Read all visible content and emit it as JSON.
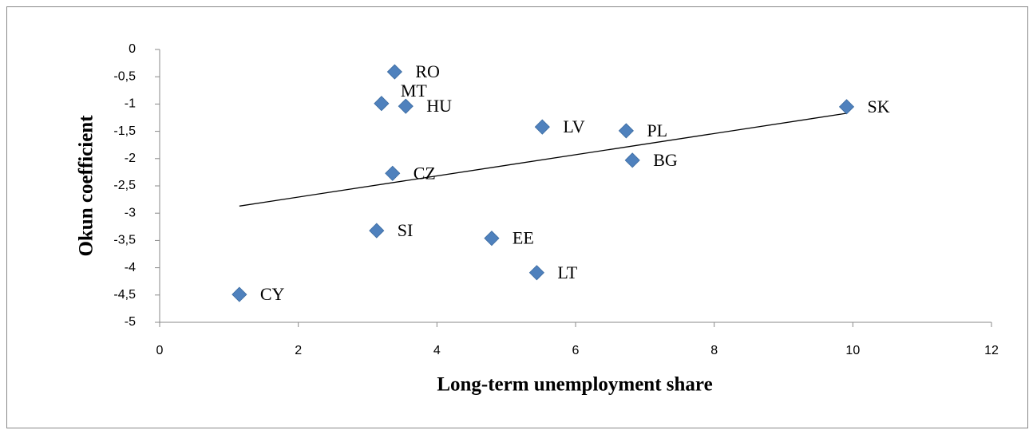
{
  "chart_data": {
    "type": "scatter",
    "xlabel": "Long-term unemployment share",
    "ylabel": "Okun coefficient",
    "labels": [
      "CY",
      "SI",
      "CZ",
      "MT",
      "RO",
      "HU",
      "EE",
      "LT",
      "LV",
      "PL",
      "BG",
      "SK"
    ],
    "x": [
      1.15,
      3.13,
      3.36,
      3.2,
      3.39,
      3.55,
      4.79,
      5.44,
      5.52,
      6.73,
      6.82,
      9.91
    ],
    "y": [
      -4.49,
      -3.32,
      -2.27,
      -0.99,
      -0.41,
      -1.04,
      -3.46,
      -4.09,
      -1.42,
      -1.49,
      -2.03,
      -1.05
    ],
    "color": "#4f81bd",
    "trendline": {
      "x": [
        1.15,
        9.91
      ],
      "y": [
        -2.87,
        -1.17
      ]
    },
    "xlim": [
      0,
      12
    ],
    "xticks": [
      0,
      2,
      4,
      6,
      8,
      10,
      12
    ],
    "ylim": [
      -5,
      0
    ],
    "yticks": [
      0,
      {
        "value": -0.5,
        "label": "-0,5"
      },
      -1,
      {
        "value": -1.5,
        "label": "-1,5"
      },
      -2,
      {
        "value": -2.5,
        "label": "-2,5"
      },
      -3,
      {
        "value": -3.5,
        "label": "-3,5"
      },
      -4,
      {
        "value": -4.5,
        "label": "-4,5"
      },
      -5
    ]
  }
}
